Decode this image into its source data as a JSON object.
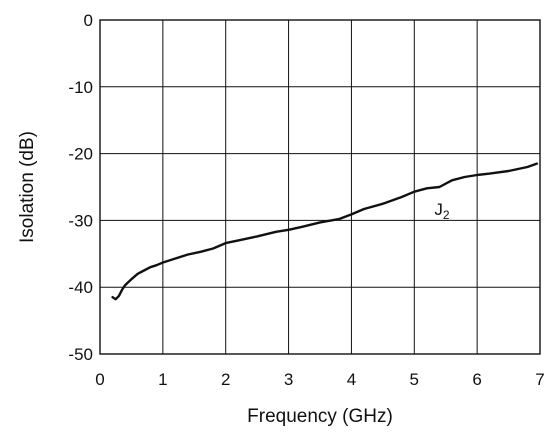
{
  "chart_data": {
    "type": "line",
    "title": "",
    "xlabel": "Frequency (GHz)",
    "ylabel": "Isolation (dB)",
    "xlim": [
      0,
      7
    ],
    "ylim": [
      -50,
      0
    ],
    "grid": true,
    "x_ticks": [
      "0",
      "1",
      "2",
      "3",
      "4",
      "5",
      "6",
      "7"
    ],
    "y_ticks": [
      "0",
      "-10",
      "-20",
      "-30",
      "-40",
      "-50"
    ],
    "annotation": {
      "base": "J",
      "sub": "2"
    },
    "series": [
      {
        "x": [
          0.2,
          0.25,
          0.3,
          0.35,
          0.4,
          0.5,
          0.6,
          0.7,
          0.8,
          0.9,
          1.0,
          1.2,
          1.4,
          1.6,
          1.8,
          2.0,
          2.2,
          2.5,
          2.8,
          3.0,
          3.2,
          3.5,
          3.8,
          4.0,
          4.2,
          4.5,
          4.8,
          5.0,
          5.2,
          5.4,
          5.6,
          5.8,
          6.0,
          6.2,
          6.5,
          6.8,
          6.95
        ],
        "y": [
          -41.5,
          -41.8,
          -41.3,
          -40.4,
          -39.7,
          -38.8,
          -38.0,
          -37.5,
          -37.0,
          -36.7,
          -36.3,
          -35.7,
          -35.1,
          -34.7,
          -34.2,
          -33.4,
          -33.0,
          -32.4,
          -31.7,
          -31.4,
          -31.0,
          -30.3,
          -29.8,
          -29.1,
          -28.3,
          -27.5,
          -26.5,
          -25.7,
          -25.2,
          -25.0,
          -24.0,
          -23.5,
          -23.2,
          -23.0,
          -22.6,
          -22.0,
          -21.5
        ]
      }
    ]
  }
}
